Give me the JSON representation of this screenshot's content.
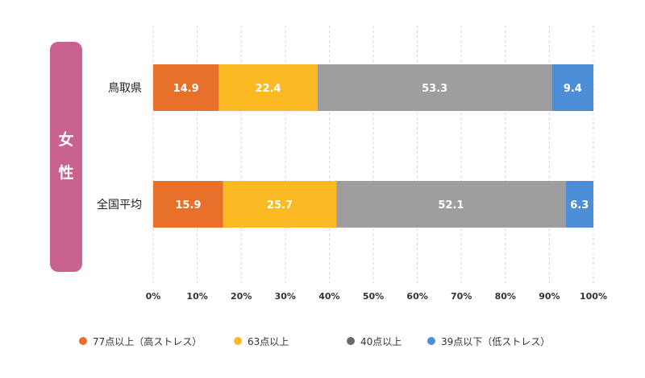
{
  "side_label": {
    "chars": [
      "女",
      "性"
    ],
    "color": "#c8628e"
  },
  "chart_data": {
    "type": "bar",
    "orientation": "horizontal",
    "stacked": true,
    "categories": [
      "鳥取県",
      "全国平均"
    ],
    "series": [
      {
        "name": "77点以上（高ストレス）",
        "values": [
          14.9,
          15.9
        ],
        "color": "#e8702a"
      },
      {
        "name": "63点以上",
        "values": [
          22.4,
          25.7
        ],
        "color": "#fbb924"
      },
      {
        "name": "40点以上",
        "values": [
          53.3,
          52.1
        ],
        "color": "#9e9e9e"
      },
      {
        "name": "39点以下（低ストレス）",
        "values": [
          9.4,
          6.3
        ],
        "color": "#4d8fd6"
      }
    ],
    "x_ticks": [
      "0%",
      "10%",
      "20%",
      "30%",
      "40%",
      "50%",
      "60%",
      "70%",
      "80%",
      "90%",
      "100%"
    ],
    "xlim": [
      0,
      100
    ],
    "grid": true,
    "legend_position": "bottom",
    "legend_dot_colors": [
      "#e8702a",
      "#fbb924",
      "#6b6b6b",
      "#4d8fd6"
    ]
  }
}
